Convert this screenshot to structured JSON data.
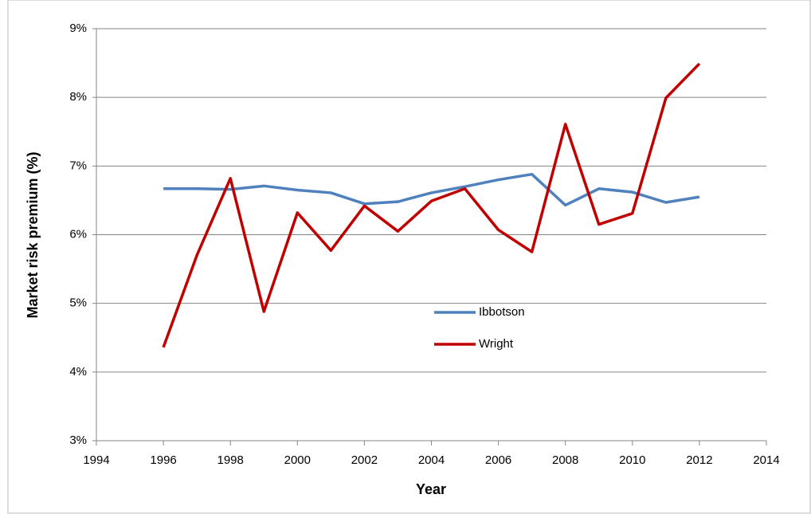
{
  "chart_data": {
    "type": "line",
    "x_label": "Year",
    "y_label": "Market risk premium (%)",
    "x": [
      1996,
      1997,
      1998,
      1999,
      2000,
      2001,
      2002,
      2003,
      2004,
      2005,
      2006,
      2007,
      2008,
      2009,
      2010,
      2011,
      2012
    ],
    "series": [
      {
        "name": "Ibbotson",
        "color": "#4f81bd",
        "values": [
          6.67,
          6.67,
          6.66,
          6.71,
          6.65,
          6.61,
          6.45,
          6.48,
          6.61,
          6.7,
          6.8,
          6.88,
          6.43,
          6.67,
          6.62,
          6.47,
          6.55
        ]
      },
      {
        "name": "Wright",
        "color": "#c00000",
        "values": [
          4.36,
          5.7,
          6.82,
          4.88,
          6.32,
          5.77,
          6.42,
          6.05,
          6.49,
          6.67,
          6.07,
          5.75,
          7.61,
          6.15,
          6.31,
          7.99,
          8.49
        ]
      }
    ],
    "xlim": [
      1994,
      2014
    ],
    "xticks": [
      1994,
      1996,
      1998,
      2000,
      2002,
      2004,
      2006,
      2008,
      2010,
      2012,
      2014
    ],
    "ylim": [
      3,
      9
    ],
    "yticks": [
      {
        "value": 3,
        "label": "3%"
      },
      {
        "value": 4,
        "label": "4%"
      },
      {
        "value": 5,
        "label": "5%"
      },
      {
        "value": 6,
        "label": "6%"
      },
      {
        "value": 7,
        "label": "7%"
      },
      {
        "value": 8,
        "label": "8%"
      },
      {
        "value": 9,
        "label": "9%"
      }
    ],
    "grid": true,
    "legend": "center"
  }
}
